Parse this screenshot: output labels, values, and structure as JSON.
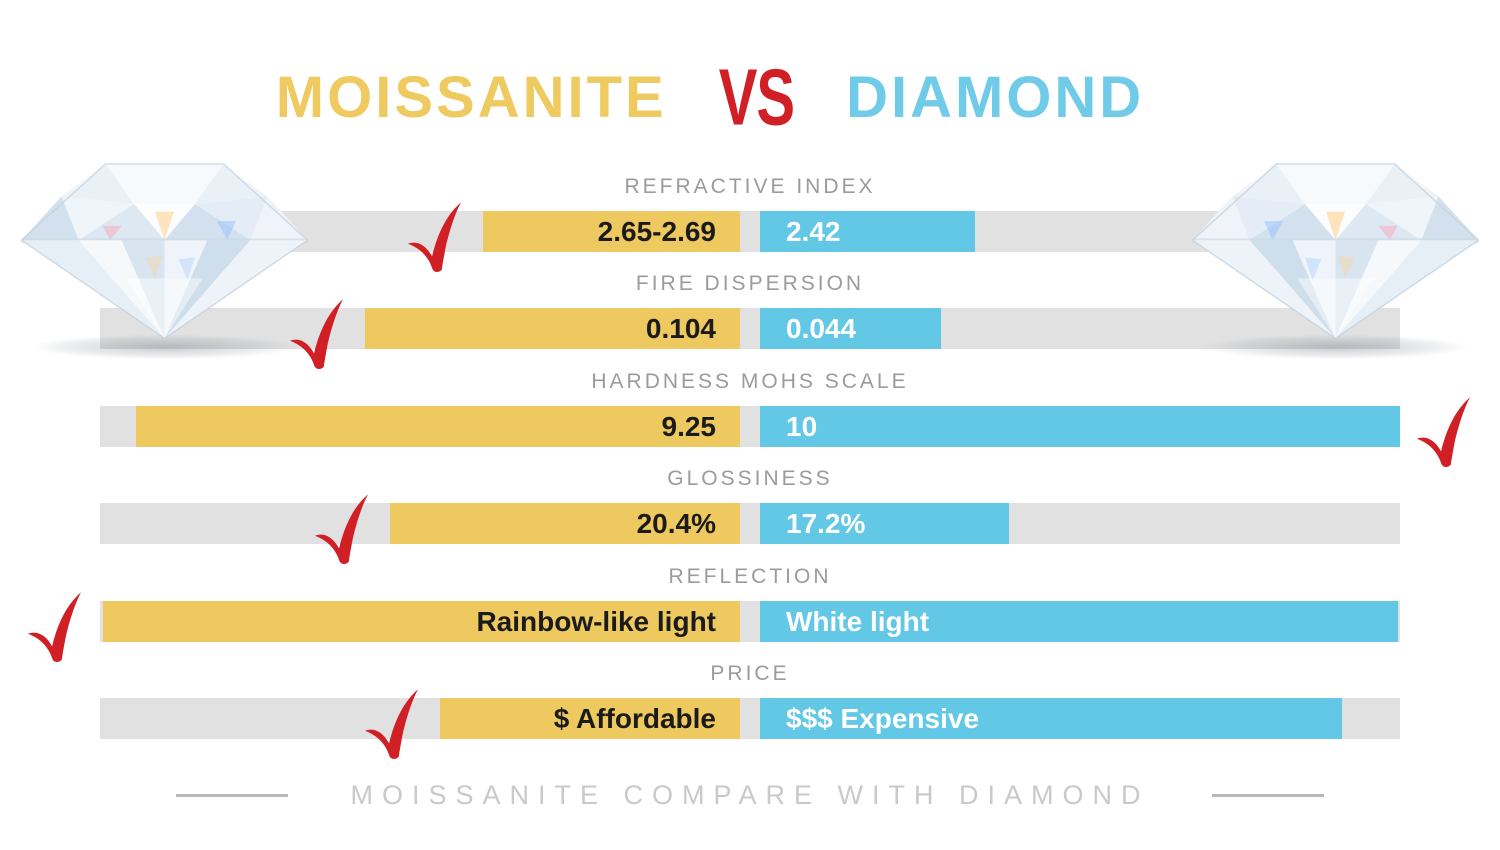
{
  "title": {
    "moissanite": "MOISSANITE",
    "vs": "VS",
    "diamond": "DIAMOND"
  },
  "footer": {
    "text": "MOISSANITE COMPARE WITH DIAMOND"
  },
  "colors": {
    "moissanite_bar": "#EDC960",
    "diamond_bar": "#63C7E6",
    "checkmark_red": "#D11F26",
    "track_gray": "#E1E1E1",
    "label_gray": "#9B9B9B",
    "title_gold": "#EFCA60",
    "title_blue": "#70CBE9",
    "title_vs_red": "#D11F26",
    "footer_gray": "#C9C9C9"
  },
  "rows": [
    {
      "label": "REFRACTIVE INDEX",
      "moissanite": "2.65-2.69",
      "diamond": "2.42",
      "winner": "moissanite",
      "gold_start": 483,
      "blue_end": 975
    },
    {
      "label": "FIRE DISPERSION",
      "moissanite": "0.104",
      "diamond": "0.044",
      "winner": "moissanite",
      "gold_start": 365,
      "blue_end": 941
    },
    {
      "label": "HARDNESS MOHS SCALE",
      "moissanite": "9.25",
      "diamond": "10",
      "winner": "diamond",
      "gold_start": 136,
      "blue_end": 1400
    },
    {
      "label": "GLOSSINESS",
      "moissanite": "20.4%",
      "diamond": "17.2%",
      "winner": "moissanite",
      "gold_start": 390,
      "blue_end": 1009
    },
    {
      "label": "REFLECTION",
      "moissanite": "Rainbow-like light",
      "diamond": "White light",
      "winner": "moissanite",
      "gold_start": 103,
      "blue_end": 1398
    },
    {
      "label": "PRICE",
      "moissanite": "$ Affordable",
      "diamond": "$$$ Expensive",
      "winner": "moissanite",
      "gold_start": 440,
      "blue_end": 1342
    }
  ],
  "chart_data": {
    "type": "bar",
    "title": "MOISSANITE VS DIAMOND",
    "categories": [
      "Refractive Index",
      "Fire Dispersion",
      "Hardness Mohs Scale",
      "Glossiness",
      "Reflection",
      "Price"
    ],
    "series": [
      {
        "name": "Moissanite",
        "values": [
          "2.65-2.69",
          "0.104",
          "9.25",
          "20.4%",
          "Rainbow-like light",
          "$ Affordable"
        ]
      },
      {
        "name": "Diamond",
        "values": [
          "2.42",
          "0.044",
          "10",
          "17.2%",
          "White light",
          "$$$ Expensive"
        ]
      }
    ],
    "winner_per_category": [
      "Moissanite",
      "Moissanite",
      "Diamond",
      "Moissanite",
      "Moissanite",
      "Moissanite"
    ],
    "legend_position": "none",
    "grid": false,
    "caption": "MOISSANITE COMPARE WITH DIAMOND"
  },
  "images": {
    "left_diamond": "round-brilliant-diamond-photo",
    "right_diamond": "round-brilliant-diamond-photo"
  }
}
